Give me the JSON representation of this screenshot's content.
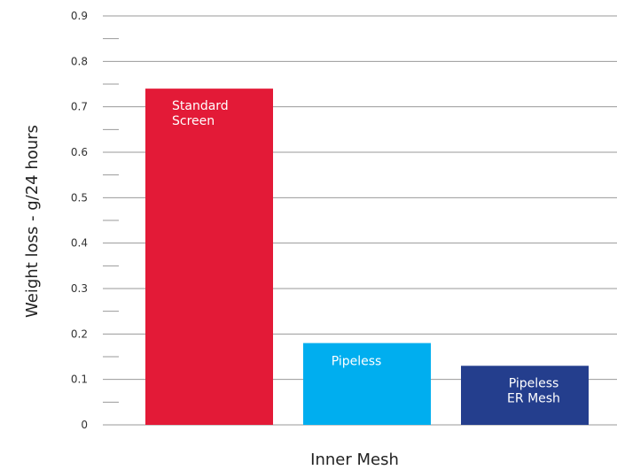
{
  "chart_data": {
    "type": "bar",
    "title": "",
    "xlabel": "Inner Mesh",
    "ylabel": "Weight loss - g/24 hours",
    "ylim": [
      0,
      0.9
    ],
    "y_ticks": [
      "0",
      "0.1",
      "0.2",
      "0.3",
      "0.4",
      "0.5",
      "0.6",
      "0.7",
      "0.8",
      "0.9"
    ],
    "grid": true,
    "legend": "none",
    "categories": [
      "Standard Screen",
      "Pipeless",
      "Pipeless ER Mesh"
    ],
    "values": [
      0.74,
      0.18,
      0.13
    ],
    "bar_labels": [
      [
        "Standard",
        "Screen"
      ],
      [
        "Pipeless"
      ],
      [
        "Pipeless",
        "ER Mesh"
      ]
    ],
    "colors": [
      "#e31a37",
      "#00aeef",
      "#243e8d"
    ],
    "grid_color": "#9a9a9a"
  }
}
